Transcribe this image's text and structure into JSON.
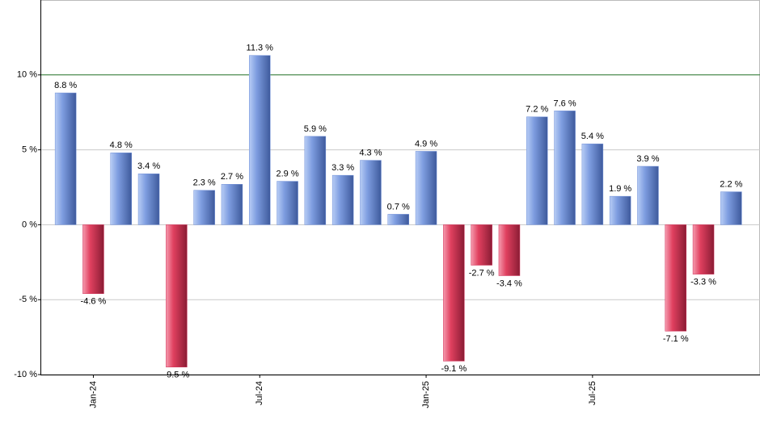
{
  "chart_data": {
    "type": "bar",
    "categories": [
      null,
      "Jan-24",
      null,
      null,
      null,
      null,
      null,
      "Jul-24",
      null,
      null,
      null,
      null,
      null,
      "Jan-25",
      null,
      null,
      null,
      null,
      null,
      "Jul-25",
      null,
      null,
      null,
      null,
      null
    ],
    "values": [
      8.8,
      -4.6,
      4.8,
      3.4,
      -9.5,
      2.3,
      2.7,
      11.3,
      2.9,
      5.9,
      3.3,
      4.3,
      0.7,
      4.9,
      -9.1,
      -2.7,
      -3.4,
      7.2,
      7.6,
      5.4,
      1.9,
      3.9,
      -7.1,
      -3.3,
      2.2
    ],
    "value_labels": [
      "8.8 %",
      "-4.6 %",
      "4.8 %",
      "3.4 %",
      "-9.5 %",
      "2.3 %",
      "2.7 %",
      "11.3 %",
      "2.9 %",
      "5.9 %",
      "3.3 %",
      "4.3 %",
      "0.7 %",
      "4.9 %",
      "-9.1 %",
      "-2.7 %",
      "-3.4 %",
      "7.2 %",
      "7.6 %",
      "5.4 %",
      "1.9 %",
      "3.9 %",
      "-7.1 %",
      "-3.3 %",
      "2.2 %"
    ],
    "positive_color": "#6f8fd8",
    "negative_color": "#d2335a",
    "ylim": [
      -10,
      15
    ],
    "yticks": [
      {
        "value": -10,
        "label": "-10 %"
      },
      {
        "value": -5,
        "label": "-5 %"
      },
      {
        "value": 0,
        "label": "0 %"
      },
      {
        "value": 5,
        "label": "5 %"
      },
      {
        "value": 10,
        "label": "10 %"
      }
    ],
    "grid": true,
    "reference_line": {
      "value": 10,
      "color": "#2e7d32"
    }
  }
}
